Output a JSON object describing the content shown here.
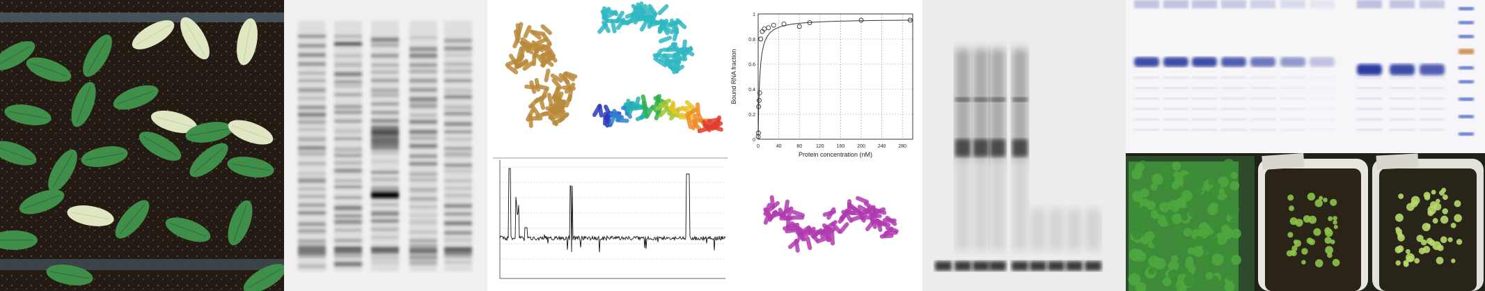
{
  "binding_plot": {
    "ylabel": "Bound RNA fraction",
    "xlabel": "Protein concentration (nM)",
    "x_ticks": [
      "0",
      "40",
      "80",
      "120",
      "160",
      "200",
      "240",
      "280"
    ],
    "y_ticks": [
      "0",
      "0.2",
      "0.4",
      "0.6",
      "0.8",
      "1"
    ]
  },
  "chart_data": {
    "type": "scatter",
    "title": "",
    "xlabel": "Protein concentration (nM)",
    "ylabel": "Bound RNA fraction",
    "xlim": [
      0,
      300
    ],
    "ylim": [
      0,
      1
    ],
    "grid": true,
    "series": [
      {
        "x": [
          0,
          0.5,
          1,
          2,
          3,
          5,
          8,
          12,
          20,
          30,
          50,
          80,
          100,
          200,
          295
        ],
        "y": [
          0.02,
          0.05,
          0.26,
          0.31,
          0.37,
          0.8,
          0.86,
          0.88,
          0.89,
          0.91,
          0.92,
          0.9,
          0.93,
          0.95,
          0.95
        ]
      }
    ],
    "fit_kd": 3
  },
  "colors": {
    "structure_tan": "#b8893a",
    "structure_cyan": "#2fb7c1",
    "structure_magenta": "#b03ab0",
    "coomassie_blue": "#2b3aa0",
    "ladder_orange": "#c8843c",
    "seedling_green": "#3f8f4a",
    "pale_leaf": "#dfe6c2"
  },
  "icons": [
    "seedling-tray-photo",
    "autoradiograph-gel",
    "protein-ribbon-structure",
    "electrophysiology-trace",
    "emsa-gel",
    "coomassie-gel",
    "arabidopsis-pot-photo"
  ]
}
